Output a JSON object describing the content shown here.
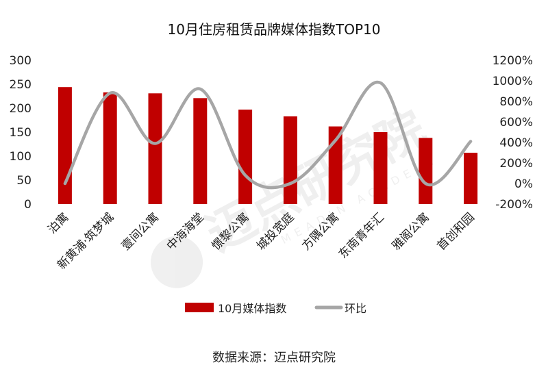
{
  "chart_data": {
    "type": "bar",
    "title": "10月住房租赁品牌媒体指数TOP10",
    "categories": [
      "泊寓",
      "新黄浦·筑梦城",
      "壹间公寓",
      "中海海堂",
      "憬黎公寓",
      "城投宽庭",
      "方隅公寓",
      "东南青年汇",
      "雅阁公寓",
      "首创和园"
    ],
    "series": [
      {
        "name": "10月媒体指数",
        "type": "bar",
        "axis": "left",
        "color": "#c00000",
        "values": [
          244,
          233,
          231,
          221,
          197,
          183,
          162,
          150,
          138,
          107
        ]
      },
      {
        "name": "环比",
        "type": "line",
        "axis": "right",
        "color": "#a6a6a6",
        "values": [
          0,
          880,
          390,
          920,
          80,
          0,
          420,
          980,
          0,
          410
        ]
      }
    ],
    "left_axis": {
      "min": 0,
      "max": 300,
      "step": 50,
      "ticks": [
        "0",
        "50",
        "100",
        "150",
        "200",
        "250",
        "300"
      ]
    },
    "right_axis": {
      "min": -200,
      "max": 1200,
      "step": 200,
      "ticks": [
        "-200%",
        "0%",
        "200%",
        "400%",
        "600%",
        "800%",
        "1000%",
        "1200%"
      ]
    },
    "legend": "bottom",
    "grid": false
  },
  "source_text": "数据来源：迈点研究院",
  "watermark": {
    "text": "迈点研究院",
    "subtext": "MEADIN ACADEMY"
  }
}
